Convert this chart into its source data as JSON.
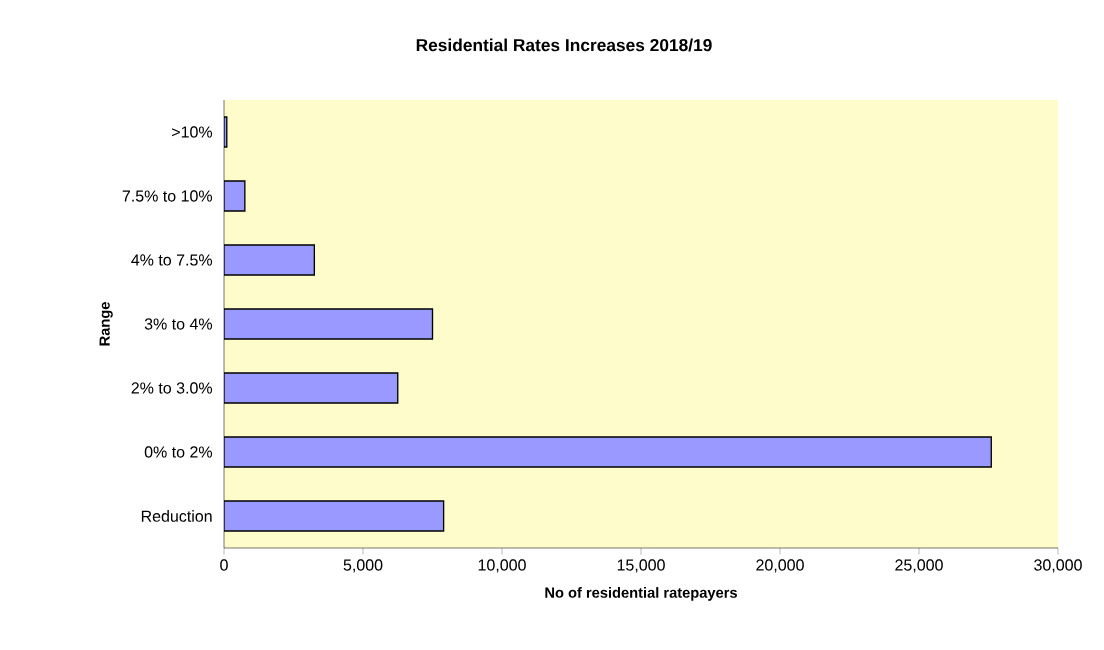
{
  "chart_data": {
    "type": "bar",
    "orientation": "horizontal",
    "title": "Residential Rates Increases 2018/19",
    "xlabel": "No of residential  ratepayers",
    "ylabel": "Range",
    "categories": [
      ">10%",
      "7.5% to 10%",
      "4% to 7.5%",
      "3% to 4%",
      "2% to 3.0%",
      "0% to 2%",
      "Reduction"
    ],
    "values": [
      100,
      750,
      3250,
      7500,
      6250,
      27600,
      7900
    ],
    "color": "#9999ff",
    "xlim": [
      0,
      30000
    ],
    "xticks": [
      0,
      {
        "value": 5000,
        "label": "5,000"
      },
      {
        "value": 10000,
        "label": "10,000"
      },
      {
        "value": 15000,
        "label": "15,000"
      },
      {
        "value": 20000,
        "label": "20,000"
      },
      {
        "value": 25000,
        "label": "25,000"
      },
      {
        "value": 30000,
        "label": "30,000"
      }
    ],
    "grid": false
  }
}
